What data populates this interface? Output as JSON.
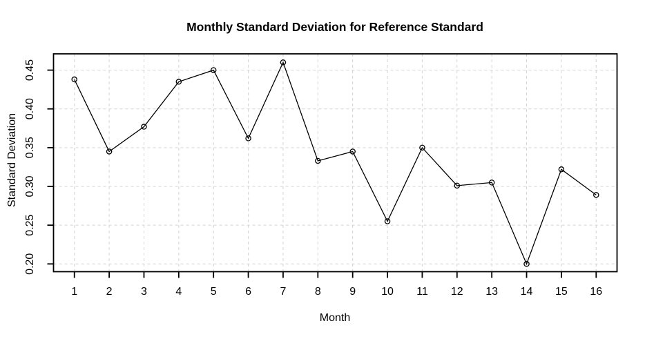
{
  "figure": {
    "background": "#ffffff",
    "line_color": "#000000",
    "grid_color": "#d3d3d3",
    "marker": "open-circle"
  },
  "chart_data": {
    "type": "line",
    "title": "Monthly Standard Deviation for Reference Standard",
    "xlabel": "Month",
    "ylabel": "Standard Deviation",
    "x": [
      1,
      2,
      3,
      4,
      5,
      6,
      7,
      8,
      9,
      10,
      11,
      12,
      13,
      14,
      15,
      16
    ],
    "values": [
      0.438,
      0.345,
      0.377,
      0.435,
      0.45,
      0.362,
      0.46,
      0.333,
      0.345,
      0.255,
      0.35,
      0.301,
      0.305,
      0.2,
      0.322,
      0.289
    ],
    "xticks": [
      1,
      2,
      3,
      4,
      5,
      6,
      7,
      8,
      9,
      10,
      11,
      12,
      13,
      14,
      15,
      16
    ],
    "xtick_labels": [
      "1",
      "2",
      "3",
      "4",
      "5",
      "6",
      "7",
      "8",
      "9",
      "10",
      "11",
      "12",
      "13",
      "14",
      "15",
      "16"
    ],
    "yticks": [
      0.2,
      0.25,
      0.3,
      0.35,
      0.4,
      0.45
    ],
    "ytick_labels": [
      "0.20",
      "0.25",
      "0.30",
      "0.35",
      "0.40",
      "0.45"
    ],
    "xlim": [
      0.4,
      16.6
    ],
    "ylim": [
      0.19,
      0.471
    ],
    "grid": true,
    "legend": null
  }
}
